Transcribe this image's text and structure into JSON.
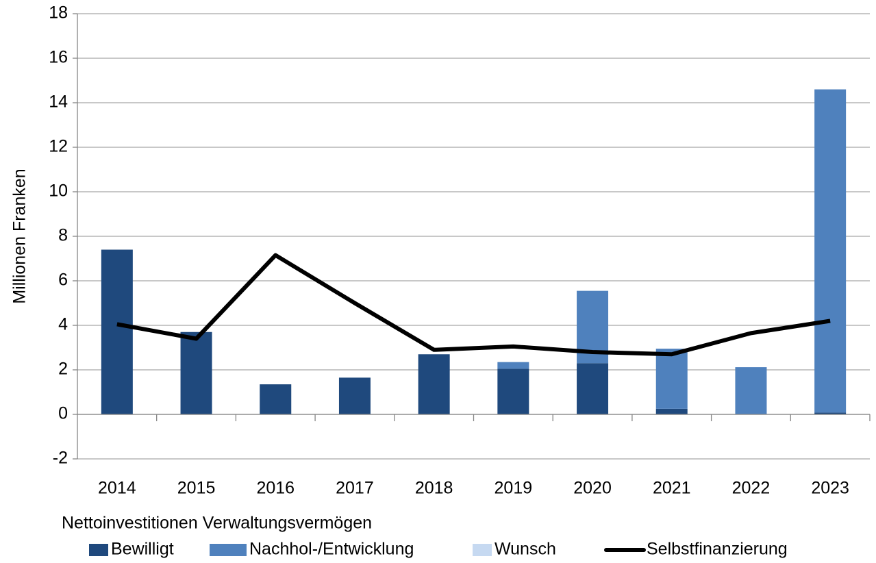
{
  "chart_data": {
    "type": "bar",
    "stacked": true,
    "y_label": "Millionen Franken",
    "legend_title": "Nettoinvestitionen Verwaltungsvermögen",
    "categories": [
      "2014",
      "2015",
      "2016",
      "2017",
      "2018",
      "2019",
      "2020",
      "2021",
      "2022",
      "2023"
    ],
    "series": [
      {
        "name": "Bewilligt",
        "color": "#1f497d",
        "type": "bar",
        "values": [
          7.4,
          3.7,
          1.35,
          1.65,
          2.7,
          2.05,
          2.3,
          0.25,
          0,
          0.08
        ]
      },
      {
        "name": "Nachhol-/Entwicklung",
        "color": "#4f81bd",
        "type": "bar",
        "values": [
          0,
          0,
          0,
          0,
          0,
          0.3,
          3.25,
          2.7,
          2.12,
          14.52
        ]
      },
      {
        "name": "Wunsch",
        "color": "#c6d9f1",
        "type": "bar",
        "values": [
          0,
          0,
          0,
          0,
          0,
          0,
          0,
          0,
          0,
          0
        ]
      },
      {
        "name": "Selbstfinanzierung",
        "color": "#000000",
        "type": "line",
        "values": [
          4.05,
          3.4,
          7.15,
          5.0,
          2.9,
          3.05,
          2.8,
          2.7,
          3.65,
          4.2
        ]
      }
    ],
    "ylim": [
      -2,
      18
    ],
    "yticks": [
      -2,
      0,
      2,
      4,
      6,
      8,
      10,
      12,
      14,
      16,
      18
    ],
    "grid": true,
    "legend": "bottom"
  }
}
